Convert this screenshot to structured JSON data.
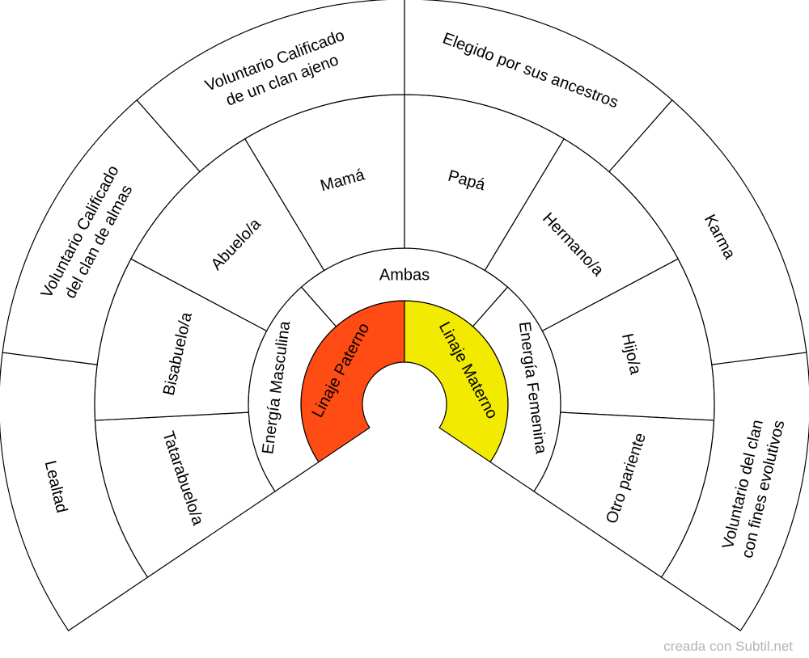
{
  "colors": {
    "paternal_fill": "#ff4b14",
    "maternal_fill": "#f2ea00",
    "background": "#ffffff",
    "stroke": "#000000",
    "credit_text": "#b4b4b4"
  },
  "rings": [
    {
      "segments": [
        {
          "label": [
            "Linaje Paterno"
          ],
          "fill": "paternal"
        },
        {
          "label": [
            "Linaje Materno"
          ],
          "fill": "maternal"
        }
      ]
    },
    {
      "segments": [
        {
          "label": [
            "Energía Masculina"
          ]
        },
        {
          "label": [
            "Ambas"
          ]
        },
        {
          "label": [
            "Energía Femenina"
          ]
        }
      ]
    },
    {
      "segments": [
        {
          "label": [
            "Tatarabuelo/a"
          ]
        },
        {
          "label": [
            "Bisabuelo/a"
          ]
        },
        {
          "label": [
            "Abuelo/a"
          ]
        },
        {
          "label": [
            "Mamá"
          ]
        },
        {
          "label": [
            "Papá"
          ]
        },
        {
          "label": [
            "Hermano/a"
          ]
        },
        {
          "label": [
            "Hijo/a"
          ]
        },
        {
          "label": [
            "Otro pariente"
          ]
        }
      ]
    },
    {
      "segments": [
        {
          "label": [
            "Lealtad"
          ]
        },
        {
          "label": [
            "Voluntario Calificado",
            "del clan de almas"
          ]
        },
        {
          "label": [
            "Voluntario Calificado",
            "de un clan ajeno"
          ]
        },
        {
          "label": [
            "Elegido por sus ancestros"
          ]
        },
        {
          "label": [
            "Karma"
          ]
        },
        {
          "label": [
            "Voluntario del clan",
            "con fines evolutivos"
          ]
        }
      ]
    }
  ],
  "credit": "creada con Subtil.net"
}
